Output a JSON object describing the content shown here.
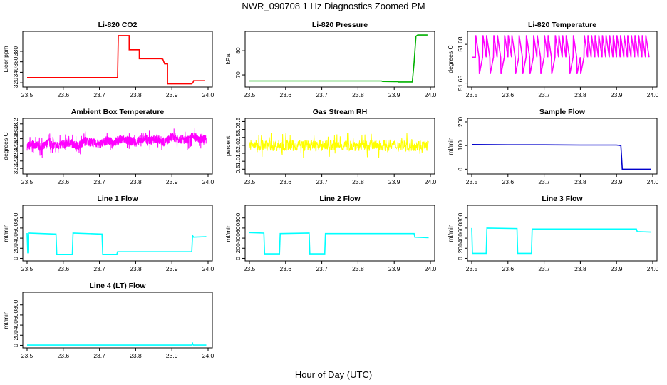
{
  "figure": {
    "title": "NWR_090708  1 Hz Diagnostics Zoomed PM",
    "xlabel": "Hour of Day (UTC)"
  },
  "chart_data": [
    {
      "type": "line",
      "title": "Li-820 CO2",
      "ylabel": "Licor ppm",
      "color": "#ff0000",
      "xlim": [
        23.5,
        24.0
      ],
      "ylim": [
        312,
        418
      ],
      "xticks": [
        "23.5",
        "23.6",
        "23.7",
        "23.8",
        "23.9",
        "24.0"
      ],
      "yticks": [
        "320",
        "340",
        "360",
        "380"
      ],
      "ytick_values": [
        320,
        340,
        360,
        380
      ],
      "x": [
        23.5,
        23.75,
        23.752,
        23.782,
        23.782,
        23.8,
        23.81,
        23.81,
        23.835,
        23.838,
        23.845,
        23.85,
        23.86,
        23.87,
        23.875,
        23.88,
        23.888,
        23.888,
        23.955,
        23.958,
        23.96,
        23.992
      ],
      "y": [
        330,
        330,
        410,
        410,
        383,
        383,
        383,
        366,
        366,
        366,
        366,
        366,
        366,
        366,
        365,
        356,
        356,
        318,
        318,
        320,
        324,
        324
      ]
    },
    {
      "type": "line",
      "title": "Li-820 Pressure",
      "ylabel": "kPa",
      "color": "#00b000",
      "xlim": [
        23.5,
        24.0
      ],
      "ylim": [
        65,
        88
      ],
      "xticks": [
        "23.5",
        "23.6",
        "23.7",
        "23.8",
        "23.9",
        "24.0"
      ],
      "yticks": [
        "70",
        "80"
      ],
      "ytick_values": [
        70,
        80
      ],
      "x": [
        23.5,
        23.865,
        23.868,
        23.9,
        23.91,
        23.912,
        23.95,
        23.955,
        23.96,
        23.965,
        23.992
      ],
      "y": [
        67.5,
        67.5,
        67.3,
        67.2,
        67.2,
        67.1,
        67.1,
        75,
        86,
        86.5,
        86.5
      ]
    },
    {
      "type": "line",
      "title": "Li-820 Temperature",
      "ylabel": "degrees C",
      "color": "#ff00ff",
      "xlim": [
        23.5,
        24.0
      ],
      "ylim": [
        51.647,
        51.69
      ],
      "xticks": [
        "23.5",
        "23.6",
        "23.7",
        "23.8",
        "23.9",
        "24.0"
      ],
      "yticks": [
        "51.65",
        "51.68"
      ],
      "ytick_values": [
        51.65,
        51.68
      ],
      "x": [
        23.5,
        23.51,
        23.511,
        23.52,
        23.521,
        23.53,
        23.531,
        23.54,
        23.541,
        23.55,
        23.551,
        23.56,
        23.561,
        23.57,
        23.571,
        23.58,
        23.581,
        23.59,
        23.591,
        23.6,
        23.601,
        23.61,
        23.611,
        23.62,
        23.621,
        23.63,
        23.631,
        23.64,
        23.641,
        23.65,
        23.651,
        23.66,
        23.661,
        23.67,
        23.671,
        23.68,
        23.681,
        23.69,
        23.691,
        23.7,
        23.701,
        23.71,
        23.711,
        23.72,
        23.721,
        23.73,
        23.731,
        23.74,
        23.741,
        23.75,
        23.751,
        23.76,
        23.761,
        23.77,
        23.771,
        23.78,
        23.781,
        23.79,
        23.791,
        23.8,
        23.801,
        23.81,
        23.811,
        23.82,
        23.821,
        23.83,
        23.831,
        23.84,
        23.841,
        23.85,
        23.851,
        23.86,
        23.861,
        23.87,
        23.871,
        23.88,
        23.881,
        23.89,
        23.891,
        23.9,
        23.901,
        23.91,
        23.911,
        23.92,
        23.921,
        23.93,
        23.931,
        23.94,
        23.941,
        23.95,
        23.951,
        23.96,
        23.961,
        23.97,
        23.971,
        23.98,
        23.981,
        23.99
      ],
      "y": [
        51.67,
        51.67,
        51.687,
        51.67,
        51.657,
        51.67,
        51.687,
        51.67,
        51.687,
        51.67,
        51.657,
        51.67,
        51.687,
        51.67,
        51.687,
        51.67,
        51.657,
        51.67,
        51.687,
        51.67,
        51.687,
        51.67,
        51.687,
        51.67,
        51.657,
        51.67,
        51.687,
        51.67,
        51.657,
        51.67,
        51.687,
        51.67,
        51.657,
        51.67,
        51.687,
        51.67,
        51.687,
        51.67,
        51.657,
        51.67,
        51.687,
        51.67,
        51.687,
        51.67,
        51.657,
        51.67,
        51.687,
        51.67,
        51.687,
        51.67,
        51.687,
        51.67,
        51.687,
        51.67,
        51.657,
        51.67,
        51.687,
        51.67,
        51.657,
        51.67,
        51.657,
        51.67,
        51.687,
        51.67,
        51.687,
        51.67,
        51.687,
        51.67,
        51.687,
        51.67,
        51.687,
        51.67,
        51.687,
        51.67,
        51.687,
        51.67,
        51.687,
        51.67,
        51.687,
        51.67,
        51.687,
        51.67,
        51.687,
        51.67,
        51.687,
        51.67,
        51.687,
        51.67,
        51.687,
        51.67,
        51.687,
        51.67,
        51.687,
        51.67,
        51.687,
        51.67,
        51.687,
        51.67
      ]
    },
    {
      "type": "line",
      "title": "Ambient Box Temperature",
      "ylabel": "degrees C",
      "color": "#ff00ff",
      "xlim": [
        23.5,
        24.0
      ],
      "ylim": [
        31.85,
        33.35
      ],
      "xticks": [
        "23.5",
        "23.6",
        "23.7",
        "23.8",
        "23.9",
        "24.0"
      ],
      "yticks": [
        "32.0",
        "32.2",
        "32.4",
        "32.6",
        "32.8",
        "33.0",
        "33.2"
      ],
      "ytick_values": [
        32.0,
        32.2,
        32.4,
        32.6,
        32.8,
        33.0,
        33.2
      ],
      "x": [
        23.5,
        23.52,
        23.54,
        23.56,
        23.58,
        23.6,
        23.62,
        23.64,
        23.66,
        23.68,
        23.7,
        23.72,
        23.74,
        23.76,
        23.78,
        23.8,
        23.82,
        23.84,
        23.86,
        23.88,
        23.9,
        23.92,
        23.94,
        23.96,
        23.98,
        23.995
      ],
      "y": [
        32.6,
        32.65,
        32.55,
        32.7,
        32.6,
        32.65,
        32.7,
        32.6,
        32.75,
        32.7,
        32.65,
        32.75,
        32.7,
        32.8,
        32.75,
        32.7,
        32.8,
        32.75,
        32.8,
        32.7,
        32.85,
        32.8,
        32.75,
        32.85,
        32.8,
        32.8
      ],
      "noise_band": 0.2
    },
    {
      "type": "line",
      "title": "Gas Stream RH",
      "ylabel": "percent",
      "color": "#ffff00",
      "xlim": [
        23.5,
        24.0
      ],
      "ylim": [
        0.2,
        3.7
      ],
      "xticks": [
        "23.5",
        "23.6",
        "23.7",
        "23.8",
        "23.9",
        "24.0"
      ],
      "yticks": [
        "0.5",
        "1.0",
        "1.5",
        "2.0",
        "2.5",
        "3.0",
        "3.5"
      ],
      "ytick_values": [
        0.5,
        1.0,
        1.5,
        2.0,
        2.5,
        3.0,
        3.5
      ],
      "x": [
        23.5,
        23.55,
        23.6,
        23.65,
        23.7,
        23.75,
        23.8,
        23.85,
        23.9,
        23.95,
        23.995
      ],
      "y": [
        2.0,
        2.0,
        2.0,
        2.0,
        2.0,
        2.0,
        2.0,
        2.0,
        2.0,
        2.0,
        2.0
      ],
      "noise_band": 0.6
    },
    {
      "type": "line",
      "title": "Sample Flow",
      "ylabel": "ml/min",
      "color": "#0000cc",
      "xlim": [
        23.5,
        24.0
      ],
      "ylim": [
        -20,
        215
      ],
      "xticks": [
        "23.5",
        "23.6",
        "23.7",
        "23.8",
        "23.9",
        "24.0"
      ],
      "yticks": [
        "0",
        "100",
        "200"
      ],
      "ytick_values": [
        0,
        100,
        200
      ],
      "x": [
        23.5,
        23.6,
        23.7,
        23.8,
        23.9,
        23.912,
        23.916,
        23.93,
        23.96,
        23.995
      ],
      "y": [
        104,
        103,
        103,
        102,
        102,
        100,
        0,
        0,
        0,
        0
      ]
    },
    {
      "type": "line",
      "title": "Line 1 Flow",
      "ylabel": "ml/min",
      "color": "#00ffff",
      "xlim": [
        23.5,
        24.0
      ],
      "ylim": [
        -50,
        1050
      ],
      "xticks": [
        "23.5",
        "23.6",
        "23.7",
        "23.8",
        "23.9",
        "24.0"
      ],
      "yticks": [
        "0",
        "200",
        "400",
        "600",
        "800"
      ],
      "ytick_values": [
        0,
        200,
        400,
        600,
        800
      ],
      "x": [
        23.5,
        23.502,
        23.504,
        23.58,
        23.582,
        23.625,
        23.627,
        23.707,
        23.709,
        23.748,
        23.75,
        23.955,
        23.957,
        23.96,
        23.995
      ],
      "y": [
        500,
        100,
        500,
        480,
        80,
        80,
        500,
        480,
        80,
        80,
        130,
        130,
        450,
        420,
        430
      ]
    },
    {
      "type": "line",
      "title": "Line 2 Flow",
      "ylabel": "ml/min",
      "color": "#00ffff",
      "xlim": [
        23.5,
        24.0
      ],
      "ylim": [
        -50,
        1050
      ],
      "xticks": [
        "23.5",
        "23.6",
        "23.7",
        "23.8",
        "23.9",
        "24.0"
      ],
      "yticks": [
        "0",
        "200",
        "400",
        "600",
        "800"
      ],
      "ytick_values": [
        0,
        200,
        400,
        600,
        800
      ],
      "x": [
        23.5,
        23.54,
        23.542,
        23.583,
        23.585,
        23.665,
        23.667,
        23.708,
        23.71,
        23.955,
        23.957,
        23.995
      ],
      "y": [
        510,
        500,
        90,
        90,
        490,
        500,
        90,
        90,
        490,
        490,
        420,
        410
      ]
    },
    {
      "type": "line",
      "title": "Line 3 Flow",
      "ylabel": "ml/min",
      "color": "#00ffff",
      "xlim": [
        23.5,
        24.0
      ],
      "ylim": [
        -50,
        1050
      ],
      "xticks": [
        "23.5",
        "23.6",
        "23.7",
        "23.8",
        "23.9",
        "24.0"
      ],
      "yticks": [
        "0",
        "200",
        "400",
        "600",
        "800"
      ],
      "ytick_values": [
        0,
        200,
        400,
        600,
        800
      ],
      "x": [
        23.5,
        23.502,
        23.54,
        23.542,
        23.625,
        23.627,
        23.665,
        23.667,
        23.955,
        23.957,
        23.995
      ],
      "y": [
        600,
        100,
        100,
        600,
        590,
        100,
        100,
        580,
        580,
        530,
        520
      ]
    },
    {
      "type": "line",
      "title": "Line 4 (LT) Flow",
      "ylabel": "ml/min",
      "color": "#00ffff",
      "xlim": [
        23.5,
        24.0
      ],
      "ylim": [
        -50,
        1050
      ],
      "xticks": [
        "23.5",
        "23.6",
        "23.7",
        "23.8",
        "23.9",
        "24.0"
      ],
      "yticks": [
        "0",
        "200",
        "400",
        "600",
        "800"
      ],
      "ytick_values": [
        0,
        200,
        400,
        600,
        800
      ],
      "x": [
        23.5,
        23.955,
        23.957,
        23.959,
        23.961,
        23.995
      ],
      "y": [
        5,
        5,
        40,
        5,
        5,
        5
      ]
    }
  ]
}
